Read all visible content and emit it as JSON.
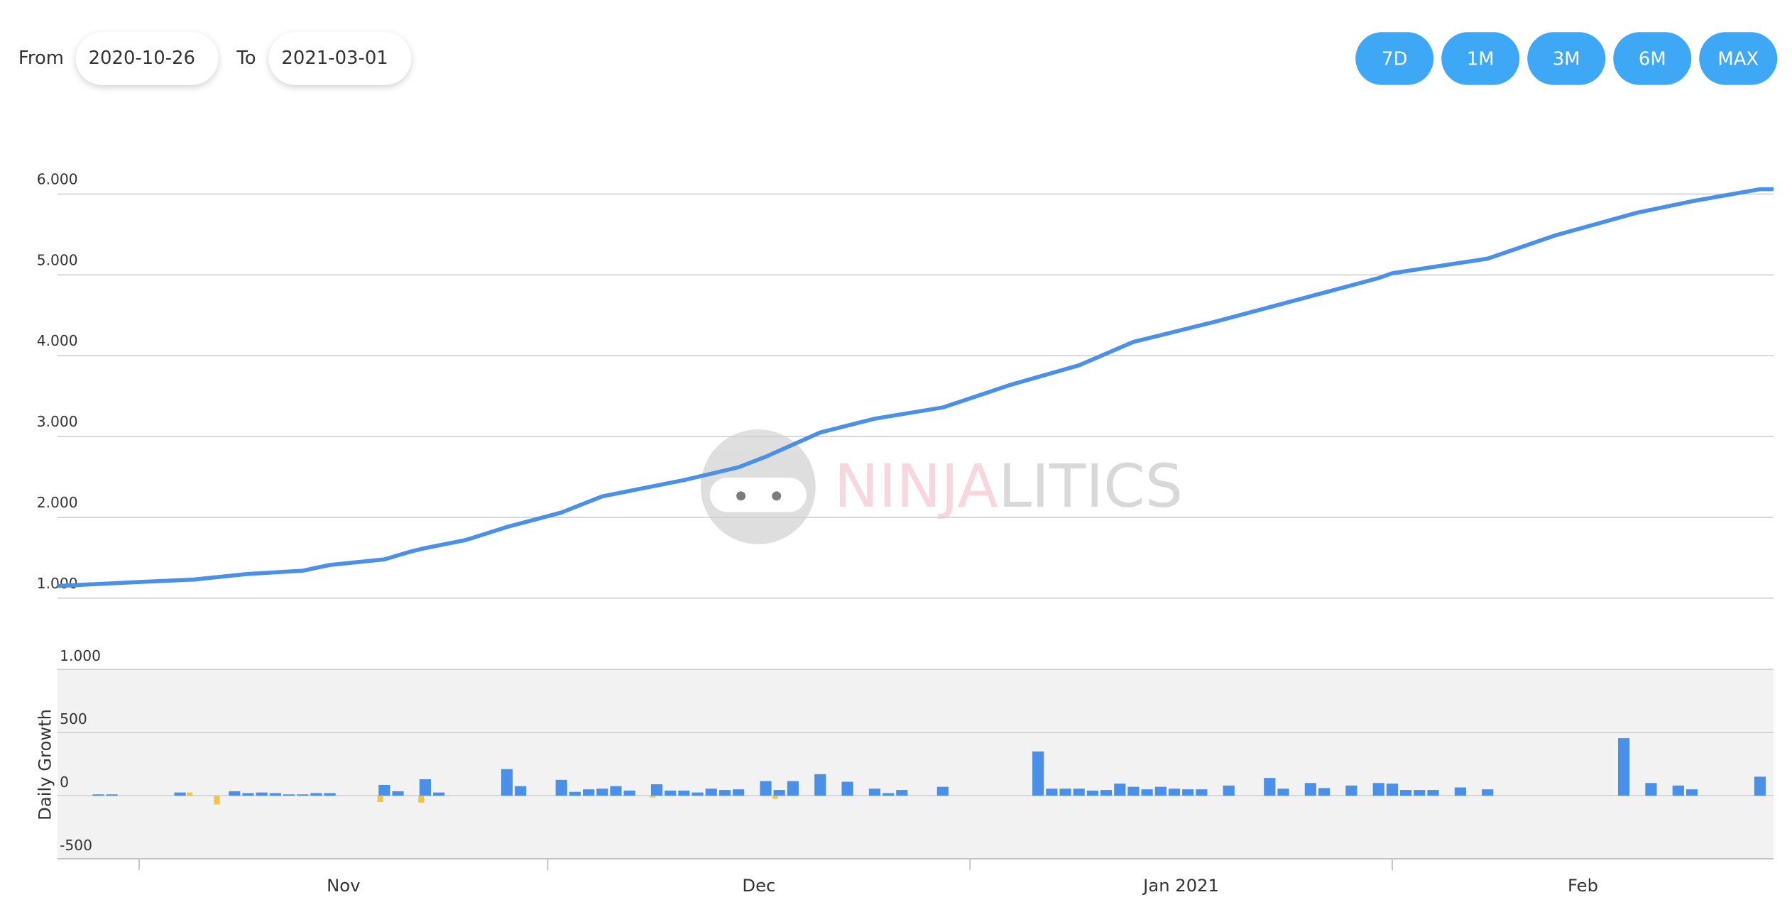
{
  "controls": {
    "from_label": "From",
    "from_value": "2020-10-26",
    "to_label": "To",
    "to_value": "2021-03-01",
    "ranges": [
      "7D",
      "1M",
      "3M",
      "6M",
      "MAX"
    ]
  },
  "watermark": {
    "left": "NINJA",
    "right": "LITICS"
  },
  "chart_data": [
    {
      "type": "line",
      "color": "#4a90e8",
      "xlim": [
        "2020-10-26",
        "2021-03-01"
      ],
      "ylim": [
        1000,
        6000
      ],
      "yticks": [
        {
          "value": 1000,
          "label": "1.000"
        },
        {
          "value": 2000,
          "label": "2.000"
        },
        {
          "value": 3000,
          "label": "3.000"
        },
        {
          "value": 4000,
          "label": "4.000"
        },
        {
          "value": 5000,
          "label": "5.000"
        },
        {
          "value": 6000,
          "label": "6.000"
        }
      ],
      "grid": true,
      "x": [
        "2020-10-26",
        "2020-11-01",
        "2020-11-05",
        "2020-11-09",
        "2020-11-13",
        "2020-11-15",
        "2020-11-19",
        "2020-11-21",
        "2020-11-22",
        "2020-11-25",
        "2020-11-28",
        "2020-12-02",
        "2020-12-05",
        "2020-12-11",
        "2020-12-15",
        "2020-12-17",
        "2020-12-21",
        "2020-12-25",
        "2020-12-30",
        "2021-01-04",
        "2021-01-09",
        "2021-01-13",
        "2021-01-19",
        "2021-01-27",
        "2021-01-31",
        "2021-02-01",
        "2021-02-08",
        "2021-02-13",
        "2021-02-19",
        "2021-02-23",
        "2021-02-28",
        "2021-03-01"
      ],
      "values": [
        1150,
        1200,
        1230,
        1300,
        1340,
        1410,
        1480,
        1580,
        1620,
        1720,
        1880,
        2060,
        2260,
        2460,
        2620,
        2750,
        3050,
        3220,
        3360,
        3640,
        3880,
        4170,
        4420,
        4780,
        4960,
        5020,
        5200,
        5490,
        5770,
        5910,
        6060,
        6060
      ]
    },
    {
      "type": "bar",
      "y_label": "Daily Growth",
      "xlim": [
        "2020-10-26",
        "2021-03-01"
      ],
      "xticks": [
        {
          "value": "2020-11-01",
          "label": "Nov"
        },
        {
          "value": "2020-12-01",
          "label": "Dec"
        },
        {
          "value": "2021-01-01",
          "label": "Jan 2021"
        },
        {
          "value": "2021-02-01",
          "label": "Feb"
        }
      ],
      "ylim": [
        -500,
        1000
      ],
      "yticks": [
        -500,
        0,
        500,
        {
          "value": 1000,
          "label": "1.000"
        }
      ],
      "grid": true,
      "series": [
        {
          "color": "#4a90e8",
          "x": [
            "2020-10-29",
            "2020-10-30",
            "2020-11-04",
            "2020-11-08",
            "2020-11-09",
            "2020-11-10",
            "2020-11-11",
            "2020-11-12",
            "2020-11-13",
            "2020-11-14",
            "2020-11-15",
            "2020-11-19",
            "2020-11-20",
            "2020-11-22",
            "2020-11-23",
            "2020-11-28",
            "2020-11-29",
            "2020-12-02",
            "2020-12-03",
            "2020-12-04",
            "2020-12-05",
            "2020-12-06",
            "2020-12-07",
            "2020-12-09",
            "2020-12-10",
            "2020-12-11",
            "2020-12-12",
            "2020-12-13",
            "2020-12-14",
            "2020-12-15",
            "2020-12-17",
            "2020-12-18",
            "2020-12-19",
            "2020-12-21",
            "2020-12-23",
            "2020-12-25",
            "2020-12-26",
            "2020-12-27",
            "2020-12-30",
            "2021-01-06",
            "2021-01-07",
            "2021-01-08",
            "2021-01-09",
            "2021-01-10",
            "2021-01-11",
            "2021-01-12",
            "2021-01-13",
            "2021-01-14",
            "2021-01-15",
            "2021-01-16",
            "2021-01-17",
            "2021-01-18",
            "2021-01-20",
            "2021-01-23",
            "2021-01-24",
            "2021-01-26",
            "2021-01-27",
            "2021-01-29",
            "2021-01-31",
            "2021-02-01",
            "2021-02-02",
            "2021-02-03",
            "2021-02-04",
            "2021-02-06",
            "2021-02-08",
            "2021-02-18",
            "2021-02-20",
            "2021-02-22",
            "2021-02-23",
            "2021-02-28"
          ],
          "values": [
            10,
            10,
            25,
            35,
            20,
            25,
            20,
            10,
            10,
            20,
            20,
            85,
            35,
            130,
            25,
            210,
            75,
            125,
            30,
            50,
            55,
            75,
            40,
            90,
            40,
            40,
            25,
            55,
            45,
            50,
            115,
            45,
            115,
            170,
            110,
            55,
            20,
            45,
            70,
            350,
            55,
            55,
            55,
            40,
            45,
            95,
            70,
            50,
            70,
            55,
            50,
            50,
            80,
            140,
            55,
            100,
            60,
            80,
            100,
            95,
            45,
            45,
            45,
            65,
            50,
            455,
            100,
            80,
            50,
            150
          ]
        },
        {
          "color": "#f5c242",
          "x": [
            "2020-11-05",
            "2020-11-07",
            "2020-11-19",
            "2020-11-22",
            "2020-12-09",
            "2020-12-18"
          ],
          "values": [
            25,
            -70,
            -50,
            -55,
            -15,
            -25
          ]
        }
      ]
    }
  ]
}
